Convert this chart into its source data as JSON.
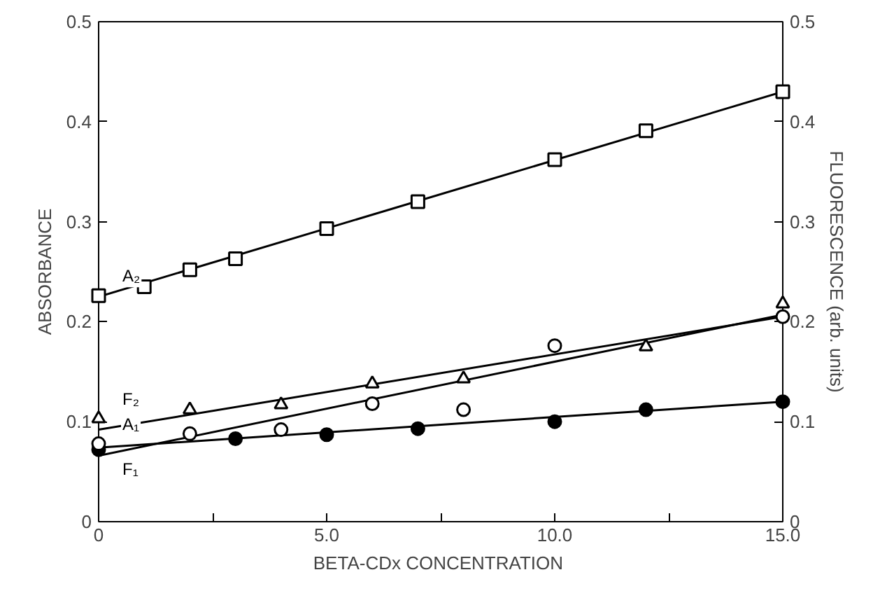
{
  "chart_data": {
    "type": "scatter",
    "xlabel": "BETA-CDx  CONCENTRATION",
    "ylabel": "ABSORBANCE",
    "y2label": "FLUORESCENCE (arb. units)",
    "xlim": [
      0,
      15
    ],
    "xticks": [
      {
        "value": 0,
        "label": "0"
      },
      {
        "value": 2.5,
        "label": null
      },
      {
        "value": 5,
        "label": "5.0"
      },
      {
        "value": 7.5,
        "label": null
      },
      {
        "value": 10,
        "label": "10.0"
      },
      {
        "value": 12.5,
        "label": null
      },
      {
        "value": 15,
        "label": "15.0"
      }
    ],
    "ylim": [
      0,
      0.5
    ],
    "yticks": [
      {
        "value": 0,
        "label": "0"
      },
      0.1,
      0.2,
      0.3,
      0.4,
      0.5
    ],
    "y2lim": [
      0,
      0.5
    ],
    "y2ticks": [
      {
        "value": 0,
        "label": "0"
      },
      0.1,
      0.2,
      0.3,
      0.4,
      0.5
    ],
    "series": [
      {
        "name": "A₂",
        "color": "#000000",
        "marker": "square",
        "x": [
          0,
          1,
          2,
          3,
          5,
          7,
          10,
          12,
          15
        ],
        "values": [
          0.226,
          0.235,
          0.252,
          0.263,
          0.293,
          0.32,
          0.362,
          0.391,
          0.43
        ]
      },
      {
        "name": "F₂",
        "color": "#000000",
        "marker": "triangle",
        "x": [
          0,
          2,
          4,
          6,
          8,
          12,
          15
        ],
        "values": [
          0.103,
          0.112,
          0.117,
          0.138,
          0.143,
          0.175,
          0.218
        ]
      },
      {
        "name": "F₁",
        "color": "#000000",
        "marker": "circle_filled",
        "x": [
          0,
          3,
          5,
          7,
          10,
          12,
          15
        ],
        "values": [
          0.072,
          0.083,
          0.087,
          0.093,
          0.1,
          0.112,
          0.12
        ]
      },
      {
        "name": "A₁",
        "color": "#000000",
        "marker": "circle",
        "x": [
          0,
          2,
          4,
          6,
          8,
          10,
          15
        ],
        "values": [
          0.078,
          0.088,
          0.092,
          0.118,
          0.112,
          0.176,
          0.205
        ]
      },
      {
        "type": "line",
        "color": "#000000",
        "x": [
          0,
          15
        ],
        "values": [
          0.225,
          0.43
        ]
      },
      {
        "type": "line",
        "color": "#000000",
        "x": [
          0,
          15
        ],
        "values": [
          0.092,
          0.205
        ]
      },
      {
        "type": "line",
        "color": "#000000",
        "x": [
          0,
          15
        ],
        "values": [
          0.066,
          0.207
        ]
      },
      {
        "type": "line",
        "color": "#000000",
        "x": [
          0,
          15
        ],
        "values": [
          0.074,
          0.12
        ]
      }
    ]
  }
}
